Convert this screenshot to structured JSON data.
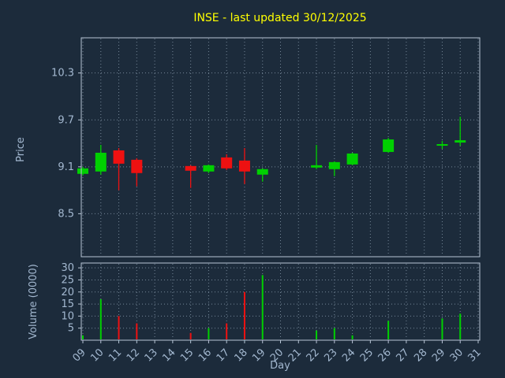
{
  "title": "INSE - last updated 30/12/2025",
  "colors": {
    "background": "#1c2b3b",
    "title": "#ffff00",
    "tick_label": "#a3b8d0",
    "axis_label": "#a3b8d0",
    "grid": "#8496a8",
    "frame": "#b8c6d6",
    "up": "#00d000",
    "down": "#ee1111"
  },
  "chart_data": [
    {
      "type": "candlestick",
      "title": "INSE - last updated 30/12/2025",
      "xlabel": "Day",
      "ylabel": "Price",
      "categories": [
        "09",
        "10",
        "11",
        "12",
        "13",
        "14",
        "15",
        "16",
        "17",
        "18",
        "19",
        "20",
        "21",
        "22",
        "23",
        "24",
        "25",
        "26",
        "27",
        "28",
        "29",
        "30",
        "31"
      ],
      "ylim": [
        7.95,
        10.75
      ],
      "yticks": [
        10.3,
        9.7,
        9.1,
        8.5
      ],
      "ytick_labels": [
        "10.3",
        "9.7",
        "9.1",
        "8.5"
      ],
      "grid": true,
      "candles": [
        {
          "day": "09",
          "open": 9.01,
          "high": 9.1,
          "low": 8.99,
          "close": 9.08
        },
        {
          "day": "10",
          "open": 9.04,
          "high": 9.38,
          "low": 9.0,
          "close": 9.28
        },
        {
          "day": "11",
          "open": 9.31,
          "high": 9.34,
          "low": 8.8,
          "close": 9.14
        },
        {
          "day": "12",
          "open": 9.19,
          "high": 9.21,
          "low": 8.85,
          "close": 9.02
        },
        {
          "day": "15",
          "open": 9.11,
          "high": 9.12,
          "low": 8.83,
          "close": 9.05
        },
        {
          "day": "16",
          "open": 9.04,
          "high": 9.13,
          "low": 9.02,
          "close": 9.12
        },
        {
          "day": "17",
          "open": 9.22,
          "high": 9.26,
          "low": 9.06,
          "close": 9.08
        },
        {
          "day": "18",
          "open": 9.18,
          "high": 9.34,
          "low": 8.88,
          "close": 9.04
        },
        {
          "day": "19",
          "open": 9.0,
          "high": 9.08,
          "low": 8.91,
          "close": 9.07
        },
        {
          "day": "22",
          "open": 9.09,
          "high": 9.38,
          "low": 9.07,
          "close": 9.12
        },
        {
          "day": "23",
          "open": 9.07,
          "high": 9.17,
          "low": 8.98,
          "close": 9.16
        },
        {
          "day": "24",
          "open": 9.13,
          "high": 9.28,
          "low": 9.12,
          "close": 9.27
        },
        {
          "day": "26",
          "open": 9.29,
          "high": 9.47,
          "low": 9.28,
          "close": 9.45
        },
        {
          "day": "29",
          "open": 9.37,
          "high": 9.43,
          "low": 9.33,
          "close": 9.39
        },
        {
          "day": "30",
          "open": 9.41,
          "high": 9.74,
          "low": 9.37,
          "close": 9.44
        }
      ]
    },
    {
      "type": "bar",
      "ylabel": "Volume (0000)",
      "categories": [
        "09",
        "10",
        "11",
        "12",
        "13",
        "14",
        "15",
        "16",
        "17",
        "18",
        "19",
        "20",
        "21",
        "22",
        "23",
        "24",
        "25",
        "26",
        "27",
        "28",
        "29",
        "30",
        "31"
      ],
      "ylim": [
        0,
        32
      ],
      "yticks": [
        30,
        25,
        20,
        15,
        10,
        5
      ],
      "ytick_labels": [
        "30",
        "25",
        "20",
        "15",
        "10",
        "5"
      ],
      "grid": true,
      "bars": [
        {
          "day": "09",
          "value": 2
        },
        {
          "day": "10",
          "value": 17
        },
        {
          "day": "11",
          "value": 10
        },
        {
          "day": "12",
          "value": 7
        },
        {
          "day": "15",
          "value": 3
        },
        {
          "day": "16",
          "value": 5
        },
        {
          "day": "17",
          "value": 7
        },
        {
          "day": "18",
          "value": 20
        },
        {
          "day": "19",
          "value": 27
        },
        {
          "day": "22",
          "value": 4
        },
        {
          "day": "23",
          "value": 5
        },
        {
          "day": "24",
          "value": 2
        },
        {
          "day": "26",
          "value": 8
        },
        {
          "day": "29",
          "value": 9
        },
        {
          "day": "30",
          "value": 11
        }
      ]
    }
  ]
}
